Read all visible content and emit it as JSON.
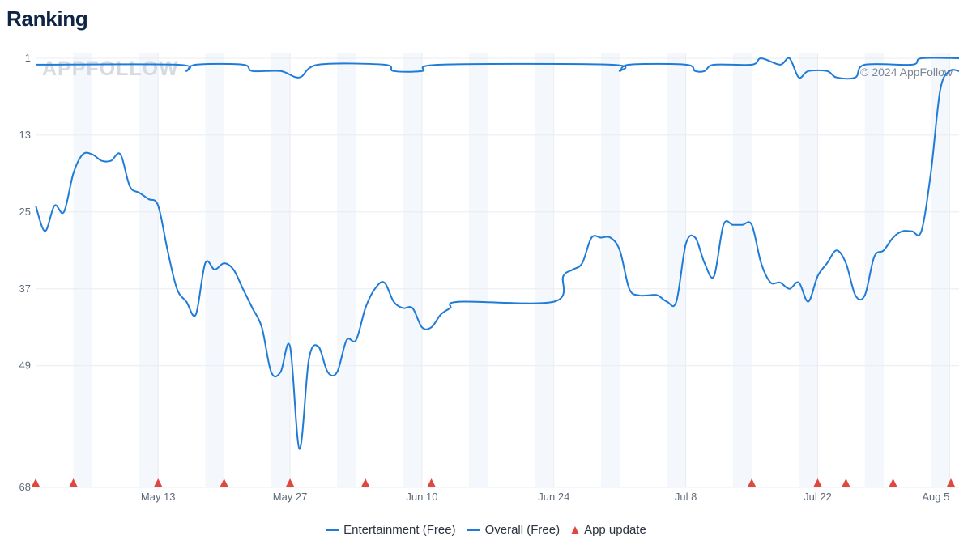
{
  "page_title": "Ranking",
  "watermark": "APPFOLLOW",
  "copyright": "© 2024 AppFollow",
  "colors": {
    "series": "#1f7bd8",
    "update_marker": "#e0473f",
    "grid": "#e8ecf1",
    "weekend_band": "#f4f7fb"
  },
  "legend": [
    {
      "label": "Entertainment (Free)",
      "icon": "line-icon"
    },
    {
      "label": "Overall (Free)",
      "icon": "line-icon"
    },
    {
      "label": "App update",
      "icon": "triangle-icon"
    }
  ],
  "chart_data": {
    "type": "line",
    "title": "Ranking",
    "y_inverted": true,
    "ylim": [
      1,
      68
    ],
    "y_ticks": [
      "1",
      "13",
      "25",
      "37",
      "49",
      "68"
    ],
    "x_start": "Apr 30",
    "x_end": "Aug 6",
    "x_ticks": [
      "May 13",
      "May 27",
      "Jun 10",
      "Jun 24",
      "Jul 8",
      "Jul 22",
      "Aug 5"
    ],
    "grid": true,
    "legend_position": "bottom",
    "series": [
      {
        "name": "Entertainment (Free)",
        "points": [
          [
            "Apr 30",
            2
          ],
          [
            "May 15",
            2
          ],
          [
            "May 16",
            3
          ],
          [
            "May 17",
            2
          ],
          [
            "May 22",
            2
          ],
          [
            "May 23",
            3
          ],
          [
            "May 26",
            3
          ],
          [
            "May 28",
            4
          ],
          [
            "May 30",
            2
          ],
          [
            "Jun 6",
            2
          ],
          [
            "Jun 7",
            3
          ],
          [
            "Jun 10",
            3
          ],
          [
            "Jun 12",
            2
          ],
          [
            "Jun 30",
            2
          ],
          [
            "Jul 1",
            3
          ],
          [
            "Jul 2",
            2
          ],
          [
            "Jul 8",
            2
          ],
          [
            "Jul 9",
            3
          ],
          [
            "Jul 10",
            3
          ],
          [
            "Jul 11",
            2
          ],
          [
            "Jul 15",
            2
          ],
          [
            "Jul 16",
            1
          ],
          [
            "Jul 18",
            2
          ],
          [
            "Jul 19",
            1
          ],
          [
            "Jul 20",
            4
          ],
          [
            "Jul 21",
            3
          ],
          [
            "Jul 23",
            3
          ],
          [
            "Jul 24",
            4
          ],
          [
            "Jul 26",
            4
          ],
          [
            "Jul 27",
            2
          ],
          [
            "Aug 1",
            2
          ],
          [
            "Aug 2",
            1
          ],
          [
            "Aug 6",
            1
          ]
        ]
      },
      {
        "name": "Overall (Free)",
        "points": [
          [
            "Apr 30",
            24
          ],
          [
            "May 1",
            28
          ],
          [
            "May 2",
            24
          ],
          [
            "May 3",
            25
          ],
          [
            "May 4",
            19
          ],
          [
            "May 5",
            16
          ],
          [
            "May 6",
            16
          ],
          [
            "May 7",
            17
          ],
          [
            "May 8",
            17
          ],
          [
            "May 9",
            16
          ],
          [
            "May 10",
            21
          ],
          [
            "May 11",
            22
          ],
          [
            "May 12",
            23
          ],
          [
            "May 13",
            24
          ],
          [
            "May 14",
            31
          ],
          [
            "May 15",
            37
          ],
          [
            "May 16",
            39
          ],
          [
            "May 17",
            41
          ],
          [
            "May 18",
            33
          ],
          [
            "May 19",
            34
          ],
          [
            "May 20",
            33
          ],
          [
            "May 21",
            34
          ],
          [
            "May 22",
            37
          ],
          [
            "May 23",
            40
          ],
          [
            "May 24",
            43
          ],
          [
            "May 25",
            50
          ],
          [
            "May 26",
            50
          ],
          [
            "May 27",
            46
          ],
          [
            "May 28",
            62
          ],
          [
            "May 29",
            48
          ],
          [
            "May 30",
            46
          ],
          [
            "May 31",
            50
          ],
          [
            "Jun 1",
            50
          ],
          [
            "Jun 2",
            45
          ],
          [
            "Jun 3",
            45
          ],
          [
            "Jun 4",
            40
          ],
          [
            "Jun 5",
            37
          ],
          [
            "Jun 6",
            36
          ],
          [
            "Jun 7",
            39
          ],
          [
            "Jun 8",
            40
          ],
          [
            "Jun 9",
            40
          ],
          [
            "Jun 10",
            43
          ],
          [
            "Jun 11",
            43
          ],
          [
            "Jun 12",
            41
          ],
          [
            "Jun 13",
            40
          ],
          [
            "Jun 14",
            39
          ],
          [
            "Jun 24",
            39
          ],
          [
            "Jun 25",
            35
          ],
          [
            "Jun 26",
            34
          ],
          [
            "Jun 27",
            33
          ],
          [
            "Jun 28",
            29
          ],
          [
            "Jun 29",
            29
          ],
          [
            "Jun 30",
            29
          ],
          [
            "Jul 1",
            31
          ],
          [
            "Jul 2",
            37
          ],
          [
            "Jul 3",
            38
          ],
          [
            "Jul 4",
            38
          ],
          [
            "Jul 5",
            38
          ],
          [
            "Jul 6",
            39
          ],
          [
            "Jul 7",
            39
          ],
          [
            "Jul 8",
            30
          ],
          [
            "Jul 9",
            29
          ],
          [
            "Jul 10",
            33
          ],
          [
            "Jul 11",
            35
          ],
          [
            "Jul 12",
            27
          ],
          [
            "Jul 13",
            27
          ],
          [
            "Jul 14",
            27
          ],
          [
            "Jul 15",
            27
          ],
          [
            "Jul 16",
            33
          ],
          [
            "Jul 17",
            36
          ],
          [
            "Jul 18",
            36
          ],
          [
            "Jul 19",
            37
          ],
          [
            "Jul 20",
            36
          ],
          [
            "Jul 21",
            39
          ],
          [
            "Jul 22",
            35
          ],
          [
            "Jul 23",
            33
          ],
          [
            "Jul 24",
            31
          ],
          [
            "Jul 25",
            33
          ],
          [
            "Jul 26",
            38
          ],
          [
            "Jul 27",
            38
          ],
          [
            "Jul 28",
            32
          ],
          [
            "Jul 29",
            31
          ],
          [
            "Jul 30",
            29
          ],
          [
            "Jul 31",
            28
          ],
          [
            "Aug 1",
            28
          ],
          [
            "Aug 2",
            28
          ],
          [
            "Aug 3",
            19
          ],
          [
            "Aug 4",
            6
          ],
          [
            "Aug 5",
            3
          ],
          [
            "Aug 6",
            3
          ]
        ]
      }
    ],
    "app_updates": [
      "Apr 30",
      "May 4",
      "May 13",
      "May 20",
      "May 27",
      "Jun 4",
      "Jun 11",
      "Jul 15",
      "Jul 22",
      "Jul 25",
      "Jul 30",
      "Aug 6"
    ]
  }
}
